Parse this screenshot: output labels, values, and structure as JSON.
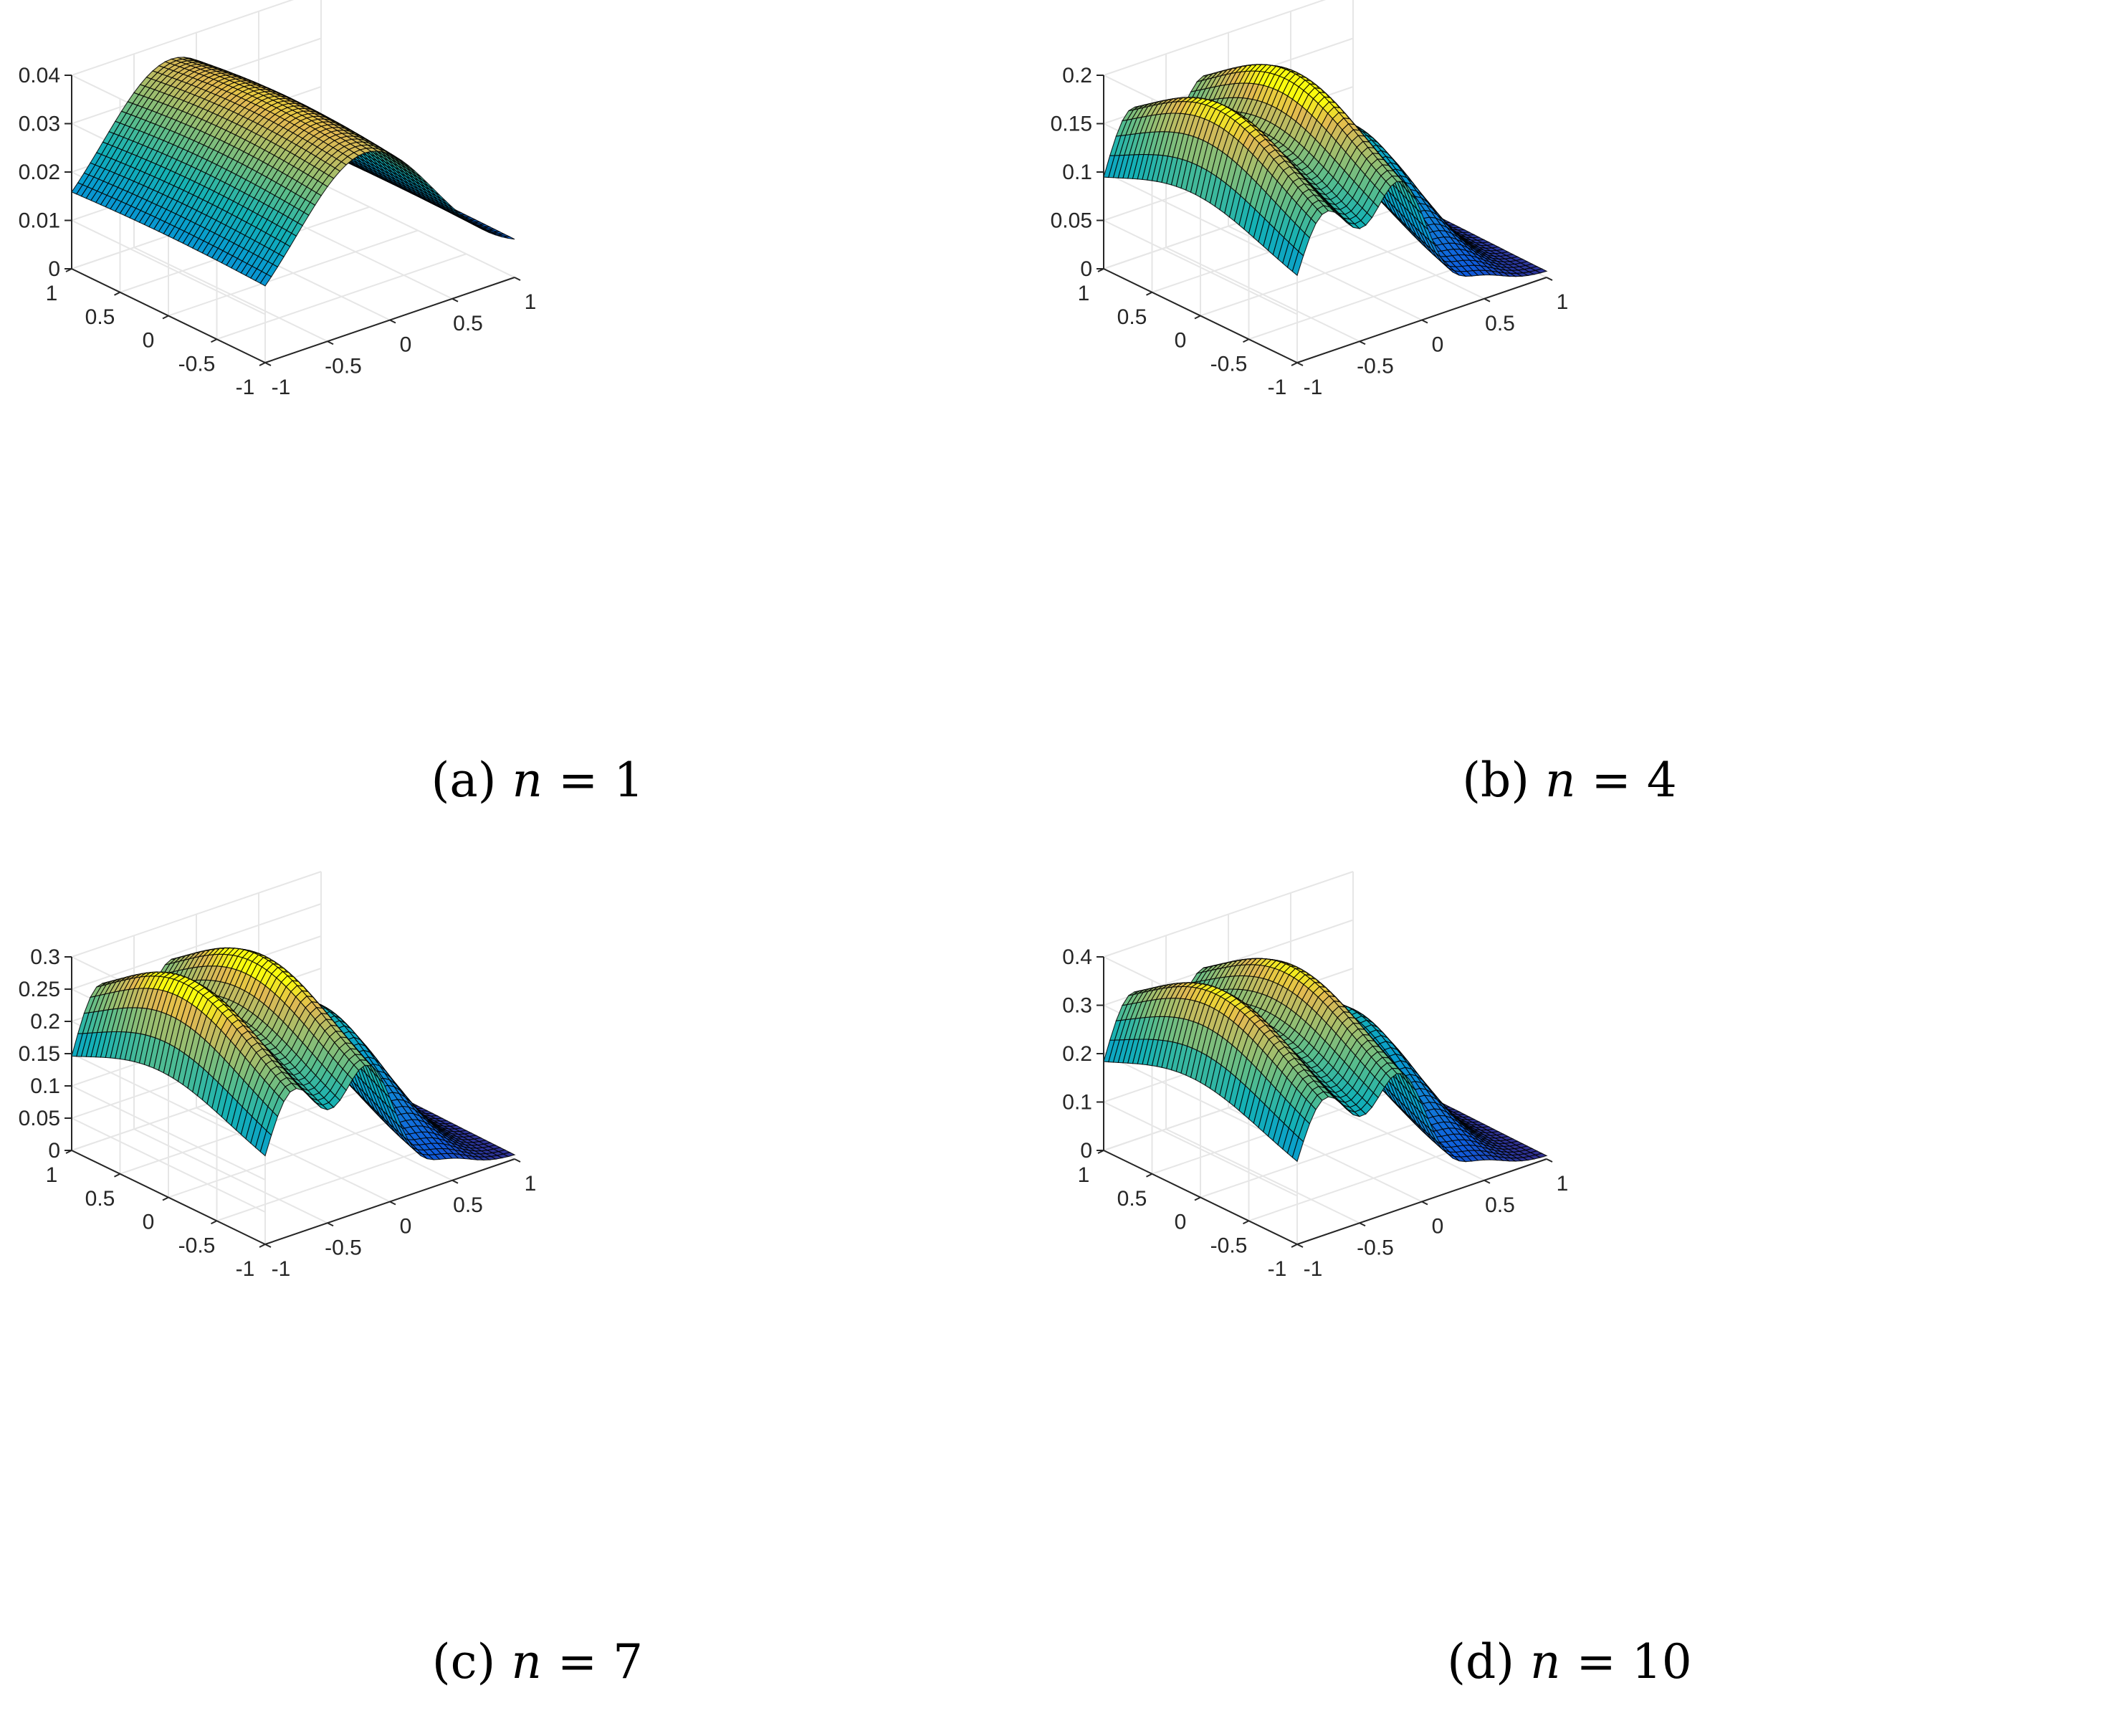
{
  "figure": {
    "panels": [
      {
        "label": "(a)",
        "variable": "n",
        "eq": "=",
        "value": "1"
      },
      {
        "label": "(b)",
        "variable": "n",
        "eq": "=",
        "value": "4"
      },
      {
        "label": "(c)",
        "variable": "n",
        "eq": "=",
        "value": "7"
      },
      {
        "label": "(d)",
        "variable": "n",
        "eq": "=",
        "value": "10"
      }
    ]
  },
  "colors": {
    "colormap": "parula",
    "grid": "#e6e6e6",
    "axis": "#262626",
    "mesh_edge": "#000000"
  },
  "chart_data": [
    {
      "type": "surface",
      "title": "",
      "x_ticks": [
        "-1",
        "-0.5",
        "0",
        "0.5",
        "1"
      ],
      "y_ticks": [
        "-1",
        "-0.5",
        "0",
        "0.5",
        "1"
      ],
      "z_ticks": [
        "0",
        "0.01",
        "0.02",
        "0.03",
        "0.04"
      ],
      "xlim": [
        -1,
        1
      ],
      "ylim": [
        -1,
        1
      ],
      "zlim": [
        0,
        0.04
      ],
      "grid": true,
      "surface": {
        "kind": "single_ridge",
        "peak_z": 0.038,
        "ridge_x": -0.2,
        "corner_low_z": 0.005
      }
    },
    {
      "type": "surface",
      "title": "",
      "x_ticks": [
        "-1",
        "-0.5",
        "0",
        "0.5",
        "1"
      ],
      "y_ticks": [
        "-1",
        "-0.5",
        "0",
        "0.5",
        "1"
      ],
      "z_ticks": [
        "0",
        "0.05",
        "0.1",
        "0.15",
        "0.2"
      ],
      "xlim": [
        -1,
        1
      ],
      "ylim": [
        -1,
        1
      ],
      "zlim": [
        0,
        0.2
      ],
      "grid": true,
      "surface": {
        "kind": "three_ridges",
        "ridge_heights": [
          0.19,
          0.2,
          0.11
        ]
      }
    },
    {
      "type": "surface",
      "title": "",
      "x_ticks": [
        "-1",
        "-0.5",
        "0",
        "0.5",
        "1"
      ],
      "y_ticks": [
        "-1",
        "-0.5",
        "0",
        "0.5",
        "1"
      ],
      "z_ticks": [
        "0",
        "0.05",
        "0.1",
        "0.15",
        "0.2",
        "0.25",
        "0.3"
      ],
      "xlim": [
        -1,
        1
      ],
      "ylim": [
        -1,
        1
      ],
      "zlim": [
        0,
        0.3
      ],
      "grid": true,
      "surface": {
        "kind": "three_ridges",
        "ridge_heights": [
          0.3,
          0.3,
          0.17
        ]
      }
    },
    {
      "type": "surface",
      "title": "",
      "x_ticks": [
        "-1",
        "-0.5",
        "0",
        "0.5",
        "1"
      ],
      "y_ticks": [
        "-1",
        "-0.5",
        "0",
        "0.5",
        "1"
      ],
      "z_ticks": [
        "0",
        "0.1",
        "0.2",
        "0.3",
        "0.4"
      ],
      "xlim": [
        -1,
        1
      ],
      "ylim": [
        -1,
        1
      ],
      "zlim": [
        0,
        0.4
      ],
      "grid": true,
      "surface": {
        "kind": "three_ridges",
        "ridge_heights": [
          0.38,
          0.38,
          0.22
        ]
      }
    }
  ]
}
